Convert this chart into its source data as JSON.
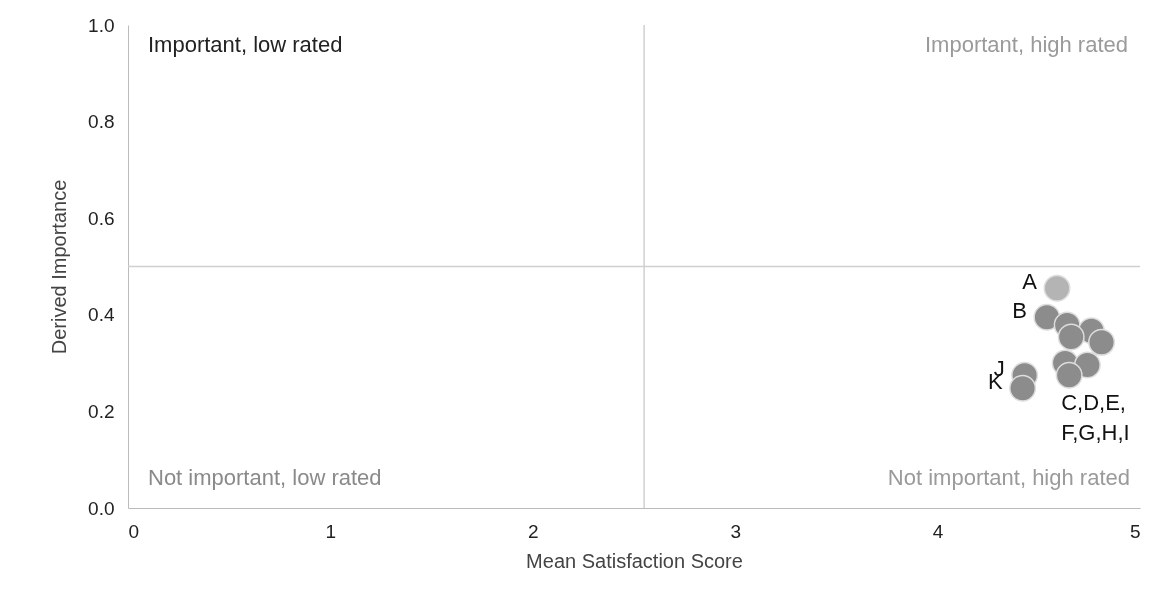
{
  "chart_data": {
    "type": "scatter",
    "xlabel": "Mean Satisfaction Score",
    "ylabel": "Derived Importance",
    "x": [
      4.59,
      4.54,
      4.64,
      4.76,
      4.81,
      4.66,
      4.63,
      4.74,
      4.65,
      4.43,
      4.42
    ],
    "values": [
      0.455,
      0.395,
      0.379,
      0.367,
      0.343,
      0.354,
      0.3,
      0.296,
      0.275,
      0.275,
      0.248
    ],
    "colors": [
      "#b4b4b4",
      "#8c8c8c",
      "#8c8c8c",
      "#8c8c8c",
      "#8c8c8c",
      "#8c8c8c",
      "#8c8c8c",
      "#8c8c8c",
      "#8c8c8c",
      "#8c8c8c",
      "#8c8c8c"
    ],
    "marker": "circle",
    "xlim": [
      0,
      5
    ],
    "xticks": [
      0,
      1,
      2,
      3,
      4,
      5
    ],
    "ylim": [
      0,
      1
    ],
    "yticks": [
      {
        "value": 0,
        "label": "0.0"
      },
      0.2,
      0.4,
      0.6,
      0.8,
      {
        "value": 1,
        "label": "1.0"
      }
    ],
    "ref_lines": [
      {
        "axis": "x",
        "value": 2.55,
        "color": "#d0d0d0"
      },
      {
        "axis": "y",
        "value": 0.5,
        "color": "#d0d0d0"
      }
    ],
    "annotations": [
      "Important, low rated",
      "Important, high rated",
      "Not important, low rated",
      "Not important, high rated",
      {
        "text": "A",
        "x": 4.59,
        "y": 0.455
      },
      {
        "text": "B",
        "x": 4.54,
        "y": 0.395
      },
      {
        "text": "J",
        "x": 4.43,
        "y": 0.275
      },
      {
        "text": "K",
        "x": 4.42,
        "y": 0.248
      },
      {
        "text": "C,D,E,\nF,G,H,I",
        "x": 4.65,
        "y": 0.275
      }
    ]
  }
}
